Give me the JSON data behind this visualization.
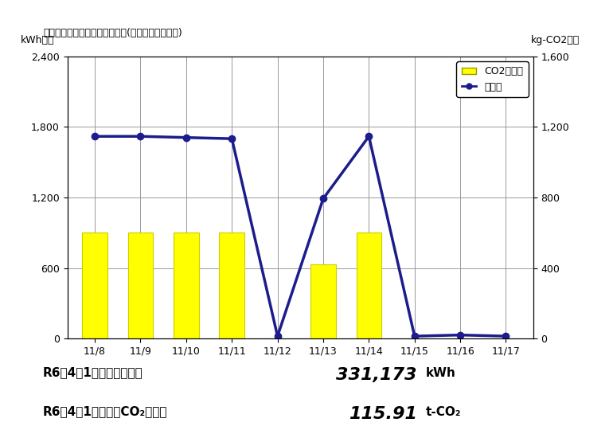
{
  "title": "小水力発電システムの稼働状況(広域水道センター)",
  "categories": [
    "11/8",
    "11/9",
    "11/10",
    "11/11",
    "11/12",
    "11/13",
    "11/14",
    "11/15",
    "11/16",
    "11/17"
  ],
  "bar_values": [
    900,
    900,
    900,
    900,
    0,
    630,
    900,
    0,
    0,
    0
  ],
  "line_values": [
    1720,
    1720,
    1710,
    1700,
    20,
    1190,
    1720,
    20,
    30,
    20
  ],
  "bar_color": "#FFFF00",
  "bar_edge_color": "#CCCC00",
  "line_color": "#1C1C8C",
  "left_ylabel": "kWh／日",
  "right_ylabel": "kg-CO2／日",
  "left_ylim": [
    0,
    2400
  ],
  "right_ylim": [
    0,
    1600
  ],
  "left_yticks": [
    0,
    600,
    1200,
    1800,
    2400
  ],
  "right_yticks": [
    0,
    400,
    800,
    1200,
    1600
  ],
  "legend_bar_label": "CO2削減量",
  "legend_line_label": "発電量",
  "summary_label1": "R6年4月1日からの発電量",
  "summary_value1": "331,173",
  "summary_unit1": "kWh",
  "summary_label2": "R6年4月1日からのCO₂削減量",
  "summary_value2": "115.91",
  "summary_unit2": "t-CO₂",
  "bg_color": "#FFFFFF",
  "grid_color": "#999999"
}
